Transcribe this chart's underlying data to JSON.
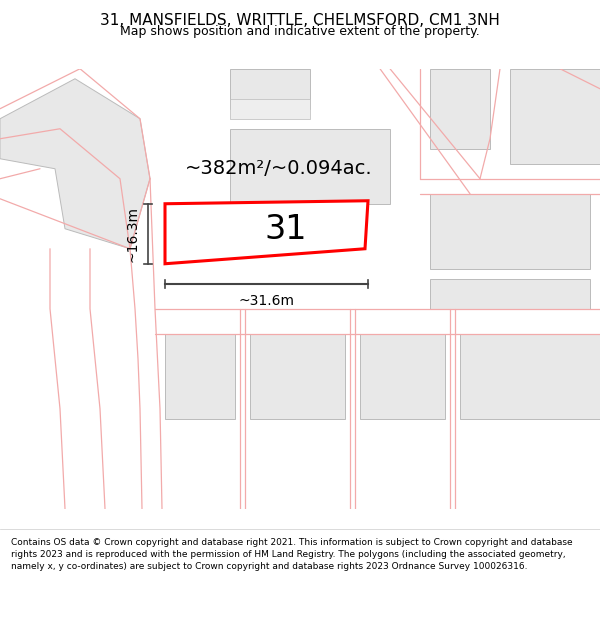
{
  "title": "31, MANSFIELDS, WRITTLE, CHELMSFORD, CM1 3NH",
  "subtitle": "Map shows position and indicative extent of the property.",
  "footer": "Contains OS data © Crown copyright and database right 2021. This information is subject to Crown copyright and database rights 2023 and is reproduced with the permission of HM Land Registry. The polygons (including the associated geometry, namely x, y co-ordinates) are subject to Crown copyright and database rights 2023 Ordnance Survey 100026316.",
  "area_label": "~382m²/~0.094ac.",
  "width_label": "~31.6m",
  "height_label": "~16.3m",
  "plot_number": "31",
  "map_bg": "#ffffff",
  "road_color": "#f2aaaa",
  "building_edge": "#bbbbbb",
  "building_fill": "#e8e8e8",
  "highlight_color": "#ff0000",
  "measure_color": "#444444",
  "title_fontsize": 11,
  "subtitle_fontsize": 9,
  "footer_fontsize": 6.5,
  "area_fontsize": 14,
  "measure_fontsize": 10,
  "plot_fontsize": 24
}
